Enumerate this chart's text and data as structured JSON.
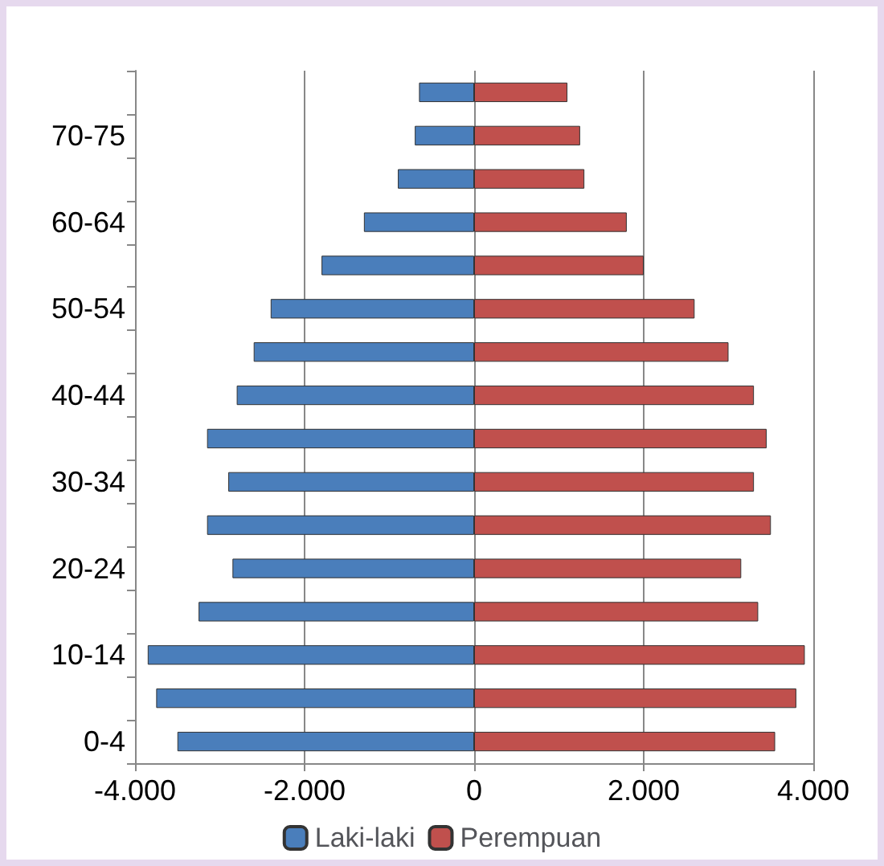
{
  "chart_data": {
    "type": "bar",
    "orientation": "horizontal",
    "stacked": true,
    "categories": [
      null,
      "70-75",
      null,
      "60-64",
      null,
      "50-54",
      null,
      "40-44",
      null,
      "30-34",
      null,
      "20-24",
      null,
      "10-14",
      null,
      "0-4"
    ],
    "series": [
      {
        "name": "Laki-laki",
        "color": "#4a7ebb",
        "values": [
          -650,
          -700,
          -900,
          -1300,
          -1800,
          -2400,
          -2600,
          -2800,
          -3150,
          -2900,
          -3150,
          -2850,
          -3250,
          -3850,
          -3750,
          -3500
        ]
      },
      {
        "name": "Perempuan",
        "color": "#c0504d",
        "values": [
          1100,
          1250,
          1300,
          1800,
          2000,
          2600,
          3000,
          3300,
          3450,
          3300,
          3500,
          3150,
          3350,
          3900,
          3800,
          3550
        ]
      }
    ],
    "xlim": [
      -4000,
      4000
    ],
    "xticks": [
      {
        "value": -4000,
        "label": "-4.000"
      },
      {
        "value": -2000,
        "label": "-2.000"
      },
      0,
      {
        "value": 2000,
        "label": "2.000"
      },
      {
        "value": 4000,
        "label": "4.000"
      }
    ],
    "grid": "x",
    "legend": "bottom"
  }
}
